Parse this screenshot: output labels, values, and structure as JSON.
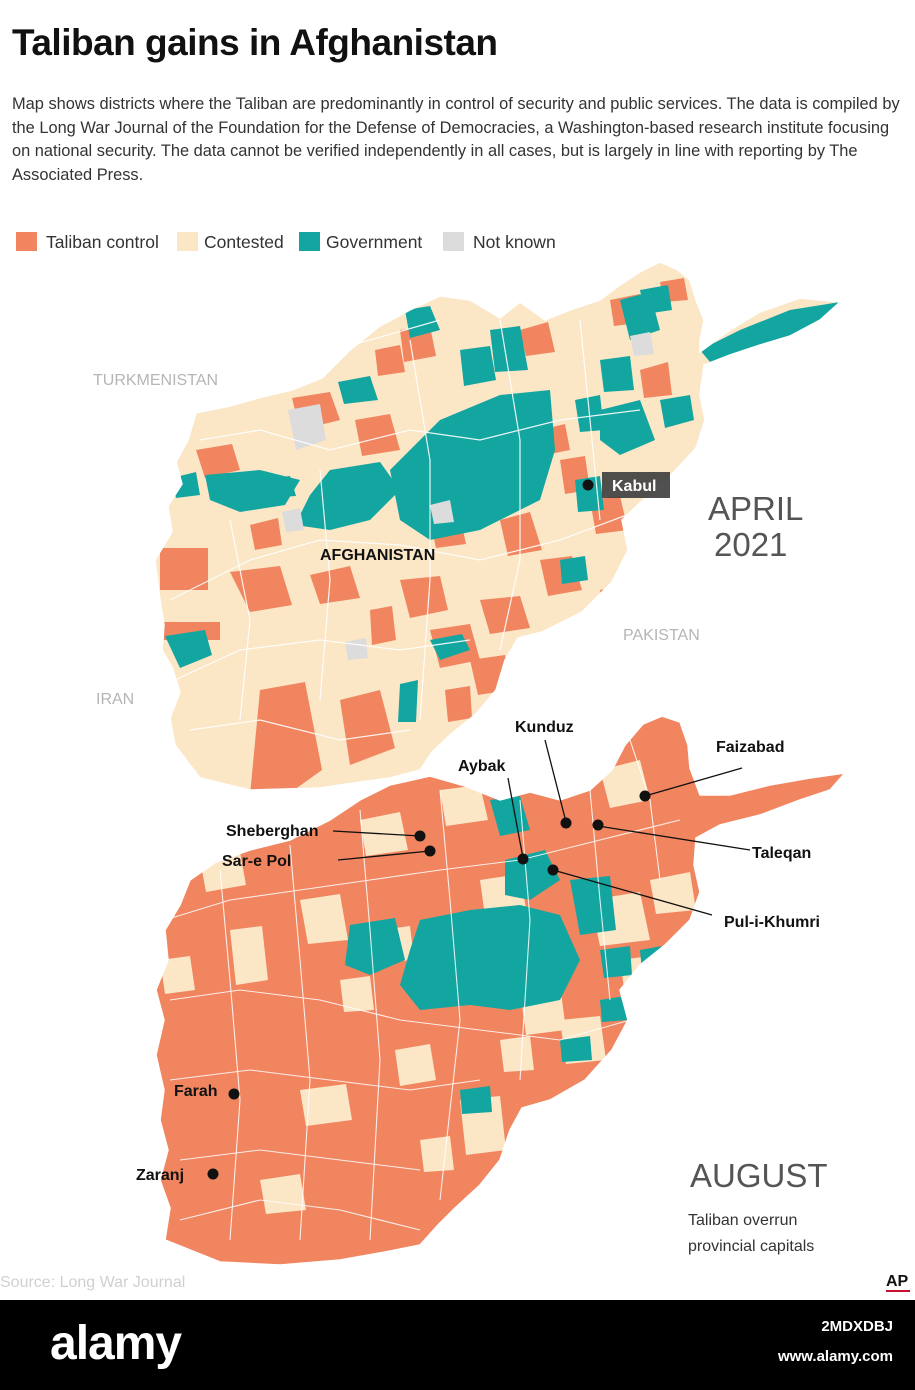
{
  "title": "Taliban gains in Afghanistan",
  "description": "Map shows districts where the Taliban are predominantly in control of security and public services. The data is compiled by the Long War Journal of the Foundation for the Defense of Democracies, a Washington-based research institute focusing on national security. The data cannot be verified independently in all cases, but is largely in line with reporting by The Associated Press.",
  "legend": [
    {
      "label": "Taliban control",
      "color": "#f0855f"
    },
    {
      "label": "Contested",
      "color": "#fbe6c6"
    },
    {
      "label": "Government",
      "color": "#13a5a0"
    },
    {
      "label": "Not known",
      "color": "#dcdcdc"
    }
  ],
  "map_april": {
    "period_line1": "APRIL",
    "period_line2": "2021",
    "country_label": "AFGHANISTAN",
    "neighbors": {
      "turkmenistan": "TURKMENISTAN",
      "iran": "IRAN",
      "pakistan": "PAKISTAN"
    },
    "city": "Kabul"
  },
  "map_august": {
    "period": "AUGUST",
    "caption_line1": "Taliban overrun",
    "caption_line2": "provincial capitals",
    "cities": [
      "Kunduz",
      "Faizabad",
      "Aybak",
      "Sheberghan",
      "Sar-e Pol",
      "Taleqan",
      "Pul-i-Khumri",
      "Farah",
      "Zaranj"
    ]
  },
  "source": "Source: Long War Journal",
  "ap_logo_text": "AP",
  "watermark": {
    "brand": "alamy",
    "image_id": "2MDXDBJ",
    "site": "www.alamy.com"
  }
}
